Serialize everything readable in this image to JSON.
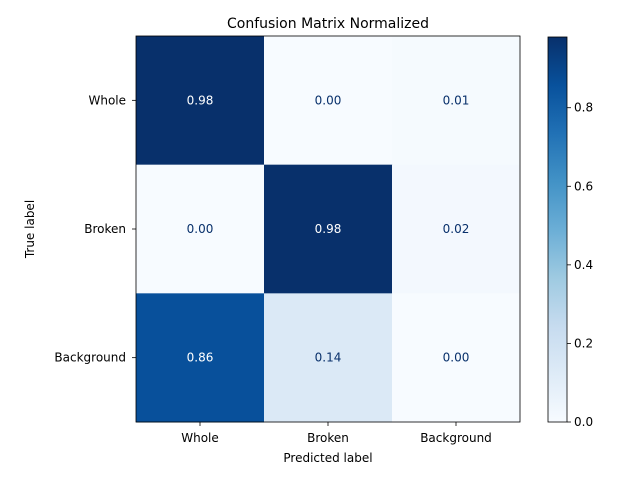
{
  "chart_data": {
    "type": "heatmap",
    "title": "Confusion Matrix Normalized",
    "xlabel": "Predicted label",
    "ylabel": "True label",
    "x_categories": [
      "Whole",
      "Broken",
      "Background"
    ],
    "y_categories": [
      "Whole",
      "Broken",
      "Background"
    ],
    "values": [
      [
        0.98,
        0.0,
        0.01
      ],
      [
        0.0,
        0.98,
        0.02
      ],
      [
        0.86,
        0.14,
        0.0
      ]
    ],
    "value_labels": [
      [
        "0.98",
        "0.00",
        "0.01"
      ],
      [
        "0.00",
        "0.98",
        "0.02"
      ],
      [
        "0.86",
        "0.14",
        "0.00"
      ]
    ],
    "colormap": "Blues",
    "color_range": [
      0,
      0.98
    ],
    "colorbar_ticks": [
      0.0,
      0.2,
      0.4,
      0.6,
      0.8
    ],
    "colorbar_tick_labels": [
      "0.0",
      "0.2",
      "0.4",
      "0.6",
      "0.8"
    ],
    "colors": {
      "text_dark": "#08306b",
      "text_light": "#ffffff"
    }
  }
}
